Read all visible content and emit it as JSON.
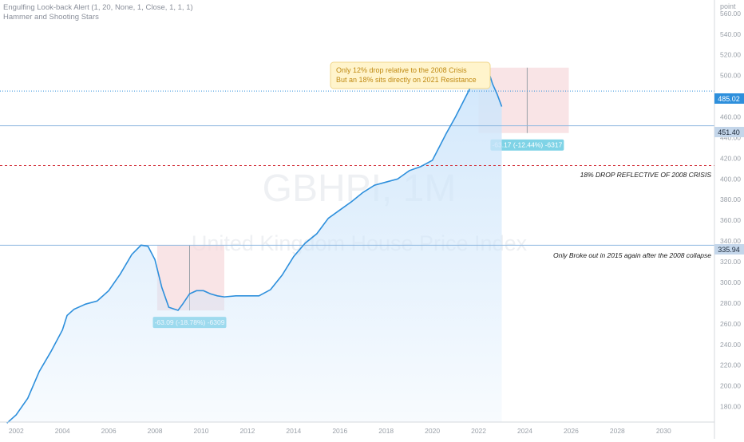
{
  "indicators": [
    "Engulfing Look-back Alert (1, 20, None, 1, Close, 1, 1, 1)",
    "Hammer and Shooting Stars"
  ],
  "watermark": {
    "symbol": "GBHPI, 1M",
    "name": "United Kingdom House Price Index"
  },
  "axis": {
    "y_title": "point",
    "y_ticks": [
      "180.00",
      "200.00",
      "220.00",
      "240.00",
      "260.00",
      "280.00",
      "300.00",
      "320.00",
      "340.00",
      "360.00",
      "380.00",
      "400.00",
      "420.00",
      "440.00",
      "460.00",
      "480.00",
      "500.00",
      "520.00",
      "540.00",
      "560.00"
    ],
    "x_ticks": [
      "2002",
      "2004",
      "2006",
      "2008",
      "2010",
      "2012",
      "2014",
      "2016",
      "2018",
      "2020",
      "2022",
      "2024",
      "2026",
      "2028",
      "2030"
    ]
  },
  "price_labels": {
    "current": "485.02",
    "resistance": "451.40",
    "support": "335.94"
  },
  "annotations": {
    "note_line1": "Only 12% drop relative to the 2008 Crisis",
    "note_line2": "But an 18% sits directly on 2021 Resistance",
    "drop_line_label": "18% DROP REFLECTIVE OF 2008 CRISIS",
    "breakout_label": "Only Broke out in 2015 again after the 2008 collapse",
    "measure_2008": "-63.09 (-18.78%) -6309",
    "measure_2022": "-63.17 (-12.44%) -6317"
  },
  "colors": {
    "line": "#2d8fdc",
    "fill": "#cfe6fb",
    "measure_fill": "#f7d8dc",
    "badge": "#7fd3e6",
    "hline": "#8fb8e0",
    "dashed": "#d2303a",
    "note_bg": "#fff4cc"
  },
  "chart_data": {
    "type": "area",
    "title": "United Kingdom House Price Index",
    "ylabel": "point",
    "ylim": [
      165,
      573
    ],
    "xlim": [
      2001.3,
      2032.2
    ],
    "x": [
      2001.6,
      2002.0,
      2002.5,
      2003.0,
      2003.5,
      2004.0,
      2004.2,
      2004.5,
      2005.0,
      2005.5,
      2006.0,
      2006.5,
      2007.0,
      2007.4,
      2007.7,
      2008.0,
      2008.3,
      2008.6,
      2009.0,
      2009.2,
      2009.5,
      2009.8,
      2010.1,
      2010.4,
      2010.7,
      2011.0,
      2011.5,
      2012.0,
      2012.5,
      2013.0,
      2013.5,
      2014.0,
      2014.5,
      2015.0,
      2015.5,
      2016.0,
      2016.5,
      2017.0,
      2017.5,
      2018.0,
      2018.5,
      2019.0,
      2019.5,
      2020.0,
      2020.3,
      2020.6,
      2021.0,
      2021.5,
      2021.9,
      2022.2,
      2022.4,
      2022.6,
      2022.8,
      2023.0
    ],
    "values": [
      164,
      172,
      188,
      214,
      233,
      254,
      268,
      274,
      279,
      282,
      292,
      308,
      327,
      336,
      335,
      322,
      295,
      276,
      273,
      279,
      289,
      292,
      292,
      289,
      287,
      286,
      287,
      287,
      287,
      293,
      307,
      325,
      338,
      347,
      362,
      370,
      378,
      387,
      394,
      397,
      400,
      408,
      412,
      418,
      431,
      444,
      460,
      482,
      500,
      507,
      506,
      492,
      482,
      470
    ],
    "hlines": [
      {
        "value": 485.02
      },
      {
        "value": 451.4
      },
      {
        "value": 335.94
      },
      {
        "value": 413.0,
        "label": "18% DROP REFLECTIVE OF 2008 CRISIS"
      }
    ],
    "measures": [
      {
        "x_start": 2008.1,
        "x_end": 2011.0,
        "x_mid": 2009.5,
        "y_top": 336.0,
        "y_bottom": 272.9,
        "label": "-63.09 (-18.78%) -6309"
      },
      {
        "x_start": 2022.0,
        "x_end": 2025.9,
        "x_mid": 2024.1,
        "y_top": 507.6,
        "y_bottom": 444.4,
        "label": "-63.17 (-12.44%) -6317"
      }
    ]
  }
}
